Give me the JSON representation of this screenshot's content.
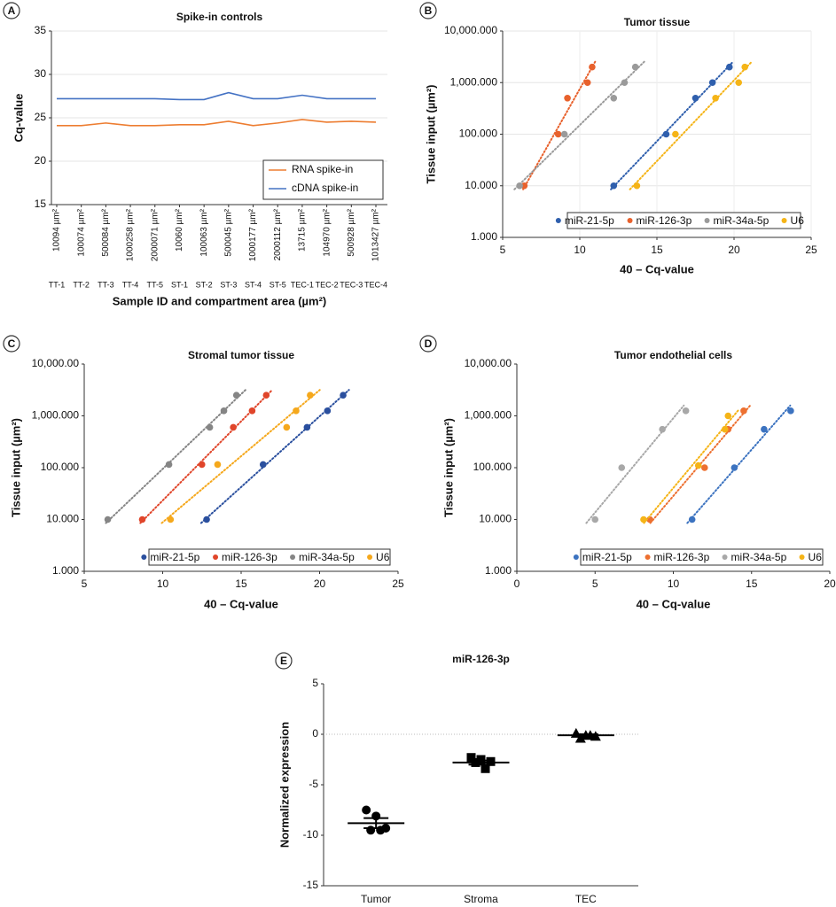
{
  "chart_data": [
    {
      "type": "line",
      "panel": "A",
      "title": "Spike-in controls",
      "ylabel": "Cq-value",
      "xlabel": "Sample ID and compartment area (µm²)",
      "categories": [
        "TT-1",
        "TT-2",
        "TT-3",
        "TT-4",
        "TT-5",
        "ST-1",
        "ST-2",
        "ST-3",
        "ST-4",
        "ST-5",
        "TEC-1",
        "TEC-2",
        "TEC-3",
        "TEC-4"
      ],
      "category_areas": [
        "10094 µm²",
        "100074 µm²",
        "500084 µm²",
        "1000258 µm²",
        "2000071 µm²",
        "10060 µm²",
        "100063 µm²",
        "500045 µm²",
        "1000177 µm²",
        "2000112 µm²",
        "13715 µm²",
        "104970 µm²",
        "500928 µm²",
        "1013427 µm²"
      ],
      "series": [
        {
          "name": "RNA spike-in",
          "color": "#ed7d31",
          "values": [
            24.1,
            24.1,
            24.4,
            24.1,
            24.1,
            24.2,
            24.2,
            24.6,
            24.1,
            24.4,
            24.8,
            24.5,
            24.6,
            24.5
          ]
        },
        {
          "name": "cDNA spike-in",
          "color": "#4472c4",
          "values": [
            27.2,
            27.2,
            27.2,
            27.2,
            27.2,
            27.1,
            27.1,
            27.9,
            27.2,
            27.2,
            27.6,
            27.2,
            27.2,
            27.2
          ]
        }
      ],
      "ylim": [
        15,
        35
      ],
      "yticks": [
        15,
        20,
        25,
        30,
        35
      ],
      "grid": true,
      "legend": "lower right"
    },
    {
      "type": "scatter",
      "panel": "B",
      "title": "Tumor tissue",
      "ylabel": "Tissue input (µm²)",
      "xlabel": "40 – Cq-value",
      "yscale": "log",
      "xlim": [
        5,
        25
      ],
      "xticks": [
        5,
        10,
        15,
        20,
        25
      ],
      "ylim": [
        1000,
        10000000
      ],
      "yticks": [
        {
          "value": 1000,
          "label": "1.000"
        },
        {
          "value": 10000,
          "label": "10.000"
        },
        {
          "value": 100000,
          "label": "100.000"
        },
        {
          "value": 1000000,
          "label": "1,000.000"
        },
        {
          "value": 10000000,
          "label": "10,000.000"
        }
      ],
      "grid": true,
      "legend": "bottom",
      "series": [
        {
          "name": "miR-21-5p",
          "color": "#2f5fad",
          "x": [
            12.2,
            15.6,
            17.5,
            18.6,
            19.7
          ],
          "y": [
            10000,
            100000,
            500000,
            1000000,
            2000000
          ]
        },
        {
          "name": "miR-126-3p",
          "color": "#e8612c",
          "x": [
            6.4,
            8.6,
            9.2,
            10.5,
            10.8
          ],
          "y": [
            10000,
            100000,
            500000,
            1000000,
            2000000
          ]
        },
        {
          "name": "miR-34a-5p",
          "color": "#9a9a9a",
          "x": [
            6.1,
            9.0,
            12.2,
            12.9,
            13.6
          ],
          "y": [
            10000,
            100000,
            500000,
            1000000,
            2000000
          ]
        },
        {
          "name": "U6",
          "color": "#f5b417",
          "x": [
            13.7,
            16.2,
            18.8,
            20.3,
            20.7
          ],
          "y": [
            10000,
            100000,
            500000,
            1000000,
            2000000
          ]
        }
      ]
    },
    {
      "type": "scatter",
      "panel": "C",
      "title": "Stromal tumor tissue",
      "ylabel": "Tissue input (µm²)",
      "xlabel": "40 – Cq-value",
      "yscale": "log",
      "xlim": [
        5,
        25
      ],
      "xticks": [
        5,
        10,
        15,
        20,
        25
      ],
      "ylim": [
        1000,
        10000000
      ],
      "yticks": [
        {
          "value": 1000,
          "label": "1.000"
        },
        {
          "value": 10000,
          "label": "10.000"
        },
        {
          "value": 100000,
          "label": "100.000"
        },
        {
          "value": 1000000,
          "label": "1,000.000"
        },
        {
          "value": 10000000,
          "label": "10,000.00"
        }
      ],
      "grid": false,
      "legend": "bottom",
      "series": [
        {
          "name": "miR-21-5p",
          "color": "#2a4f9e",
          "x": [
            12.8,
            16.4,
            19.2,
            20.5,
            21.5
          ],
          "y": [
            10000,
            115000,
            600000,
            1250000,
            2500000
          ]
        },
        {
          "name": "miR-126-3p",
          "color": "#e0452a",
          "x": [
            8.7,
            12.5,
            14.5,
            15.7,
            16.6
          ],
          "y": [
            10000,
            115000,
            600000,
            1250000,
            2500000
          ]
        },
        {
          "name": "miR-34a-5p",
          "color": "#858585",
          "x": [
            6.5,
            10.4,
            13.0,
            13.9,
            14.7
          ],
          "y": [
            10000,
            115000,
            600000,
            1250000,
            2500000
          ]
        },
        {
          "name": "U6",
          "color": "#f5a81c",
          "x": [
            10.5,
            13.5,
            17.9,
            18.5,
            19.4
          ],
          "y": [
            10000,
            115000,
            600000,
            1250000,
            2500000
          ]
        }
      ]
    },
    {
      "type": "scatter",
      "panel": "D",
      "title": "Tumor endothelial cells",
      "ylabel": "Tissue input (µm²)",
      "xlabel": "40 – Cq-value",
      "yscale": "log",
      "xlim": [
        0,
        20
      ],
      "xticks": [
        0,
        5,
        10,
        15,
        20
      ],
      "ylim": [
        1000,
        10000000
      ],
      "yticks": [
        {
          "value": 1000,
          "label": "1.000"
        },
        {
          "value": 10000,
          "label": "10.000"
        },
        {
          "value": 100000,
          "label": "100.000"
        },
        {
          "value": 1000000,
          "label": "1,000.000"
        },
        {
          "value": 10000000,
          "label": "10,000.00"
        }
      ],
      "grid": false,
      "legend": "bottom",
      "series": [
        {
          "name": "miR-21-5p",
          "color": "#3c73c0",
          "x": [
            11.2,
            13.9,
            15.8,
            17.5
          ],
          "y": [
            10000,
            100000,
            550000,
            1250000
          ]
        },
        {
          "name": "miR-126-3p",
          "color": "#ed7030",
          "x": [
            8.5,
            12.0,
            13.5,
            14.5
          ],
          "y": [
            10000,
            100000,
            550000,
            1250000
          ]
        },
        {
          "name": "miR-34a-5p",
          "color": "#a8a8a8",
          "x": [
            5.0,
            6.7,
            9.3,
            10.8
          ],
          "y": [
            10000,
            100000,
            550000,
            1250000
          ]
        },
        {
          "name": "U6",
          "color": "#f5b417",
          "x": [
            8.1,
            11.6,
            13.3,
            13.5
          ],
          "y": [
            10000,
            110000,
            550000,
            1000000
          ]
        }
      ]
    },
    {
      "type": "dotplot",
      "panel": "E",
      "title": "miR-126-3p",
      "ylabel": "Normalized expression",
      "categories": [
        "Tumor",
        "Stroma",
        "TEC"
      ],
      "markers": [
        "circle",
        "square",
        "triangle"
      ],
      "color": "#000000",
      "points": [
        [
          -7.5,
          -8.1,
          -9.3,
          -9.5,
          -9.5
        ],
        [
          -2.3,
          -2.5,
          -2.7,
          -2.8,
          -3.4
        ],
        [
          0.1,
          -0.1,
          -0.2,
          -0.4,
          -0.1
        ]
      ],
      "means": [
        -8.8,
        -2.8,
        -0.1
      ],
      "errors": [
        0.5,
        0.2,
        0.1
      ],
      "ylim": [
        -15,
        5
      ],
      "yticks": [
        -15,
        -10,
        -5,
        0,
        5
      ]
    }
  ]
}
